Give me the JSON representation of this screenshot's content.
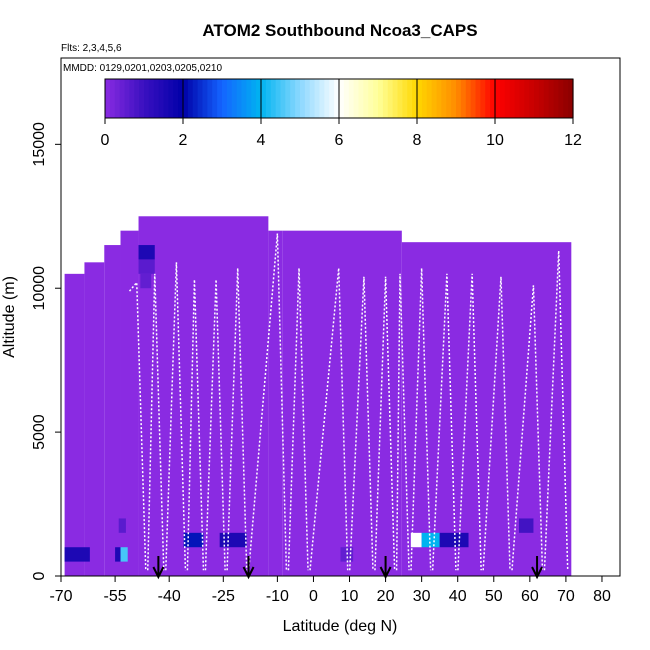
{
  "chart_data": {
    "type": "heatmap",
    "title": "ATOM2 Southbound Ncoa3_CAPS",
    "flights_note": "Flts: 2,3,4,5,6",
    "dates_note": "MMDD: 0129,0201,0203,0205,0210",
    "xlabel": "Latitude (deg N)",
    "ylabel": "Altitude (m)",
    "xlim": [
      -70,
      85
    ],
    "ylim": [
      0,
      18000
    ],
    "xticks": [
      -70,
      -55,
      -40,
      -25,
      -10,
      0,
      10,
      20,
      30,
      40,
      50,
      60,
      70,
      80
    ],
    "xtick_labels": [
      "-70",
      "-55",
      "-40",
      "-25",
      "-10",
      "0",
      "10",
      "20",
      "30",
      "40",
      "50",
      "60",
      "70",
      "80"
    ],
    "yticks": [
      0,
      5000,
      10000,
      15000
    ],
    "ytick_labels": [
      "0",
      "5000",
      "10000",
      "15000"
    ],
    "colorbar": {
      "min": 0,
      "max": 12,
      "ticks": [
        0,
        2,
        4,
        6,
        8,
        10,
        12
      ],
      "tick_labels": [
        "0",
        "2",
        "4",
        "6",
        "8",
        "10",
        "12"
      ],
      "stops": [
        {
          "v": 0,
          "c": "#8a2be2"
        },
        {
          "v": 1,
          "c": "#3a10c0"
        },
        {
          "v": 2,
          "c": "#0000a8"
        },
        {
          "v": 3,
          "c": "#1464ff"
        },
        {
          "v": 4,
          "c": "#00b4f0"
        },
        {
          "v": 5,
          "c": "#8cd8ff"
        },
        {
          "v": 6,
          "c": "#ffffff"
        },
        {
          "v": 7,
          "c": "#ffff9a"
        },
        {
          "v": 8,
          "c": "#ffd700"
        },
        {
          "v": 9,
          "c": "#ff8c00"
        },
        {
          "v": 10,
          "c": "#ff0000"
        },
        {
          "v": 11,
          "c": "#c80000"
        },
        {
          "v": 12,
          "c": "#8b0000"
        }
      ]
    },
    "background_value": 0,
    "coverage_regions": [
      {
        "lat0": -69.0,
        "lat1": -63.5,
        "alt0": 0,
        "alt1": 10500
      },
      {
        "lat0": -63.5,
        "lat1": -58.0,
        "alt0": 0,
        "alt1": 10900
      },
      {
        "lat0": -58.0,
        "lat1": -53.5,
        "alt0": 0,
        "alt1": 11500
      },
      {
        "lat0": -53.5,
        "lat1": -48.5,
        "alt0": 0,
        "alt1": 12000
      },
      {
        "lat0": -48.5,
        "lat1": -12.5,
        "alt0": 0,
        "alt1": 12500
      },
      {
        "lat0": -12.5,
        "lat1": -8.5,
        "alt0": 0,
        "alt1": 12000
      },
      {
        "lat0": -8.5,
        "lat1": 24.5,
        "alt0": 0,
        "alt1": 12000
      },
      {
        "lat0": 24.5,
        "lat1": 71.5,
        "alt0": 0,
        "alt1": 11600
      }
    ],
    "value_cells": [
      {
        "lat0": -69.0,
        "lat1": -62.0,
        "alt0": 500,
        "alt1": 1000,
        "v": 1.5
      },
      {
        "lat0": -55.0,
        "lat1": -53.5,
        "alt0": 500,
        "alt1": 1000,
        "v": 1.5
      },
      {
        "lat0": -53.5,
        "lat1": -51.5,
        "alt0": 500,
        "alt1": 1000,
        "v": 4.5
      },
      {
        "lat0": -54.0,
        "lat1": -52.0,
        "alt0": 1500,
        "alt1": 2000,
        "v": 0.6
      },
      {
        "lat0": -48.5,
        "lat1": -44.0,
        "alt0": 11000,
        "alt1": 11500,
        "v": 1.5
      },
      {
        "lat0": -48.5,
        "lat1": -44.0,
        "alt0": 10500,
        "alt1": 11000,
        "v": 0.6
      },
      {
        "lat0": -48.0,
        "lat1": -45.0,
        "alt0": 10000,
        "alt1": 10500,
        "v": 0.5
      },
      {
        "lat0": -36.0,
        "lat1": -30.5,
        "alt0": 1000,
        "alt1": 1500,
        "v": 2.2
      },
      {
        "lat0": -26.0,
        "lat1": -18.5,
        "alt0": 1000,
        "alt1": 1500,
        "v": 1.5
      },
      {
        "lat0": 7.5,
        "lat1": 11.0,
        "alt0": 500,
        "alt1": 1000,
        "v": 0.5
      },
      {
        "lat0": 27.0,
        "lat1": 30.0,
        "alt0": 1000,
        "alt1": 1500,
        "v": 6.0
      },
      {
        "lat0": 30.0,
        "lat1": 35.0,
        "alt0": 1000,
        "alt1": 1500,
        "v": 4.0
      },
      {
        "lat0": 35.0,
        "lat1": 43.0,
        "alt0": 1000,
        "alt1": 1500,
        "v": 1.5
      },
      {
        "lat0": 57.0,
        "lat1": 61.0,
        "alt0": 1500,
        "alt1": 2000,
        "v": 0.9
      }
    ],
    "profile_lats": [
      -49,
      -44,
      -38,
      -33,
      -27,
      -21,
      -10,
      -4,
      7,
      14,
      20,
      24,
      30,
      37,
      44,
      52,
      61,
      68
    ],
    "profile_top_alts": [
      10200,
      10500,
      10900,
      10300,
      10300,
      10700,
      11900,
      10700,
      10700,
      10400,
      10400,
      10500,
      10700,
      10500,
      10500,
      10400,
      10100,
      11300
    ],
    "sonde_arrow_lats": [
      -43,
      -18,
      20,
      62
    ]
  }
}
